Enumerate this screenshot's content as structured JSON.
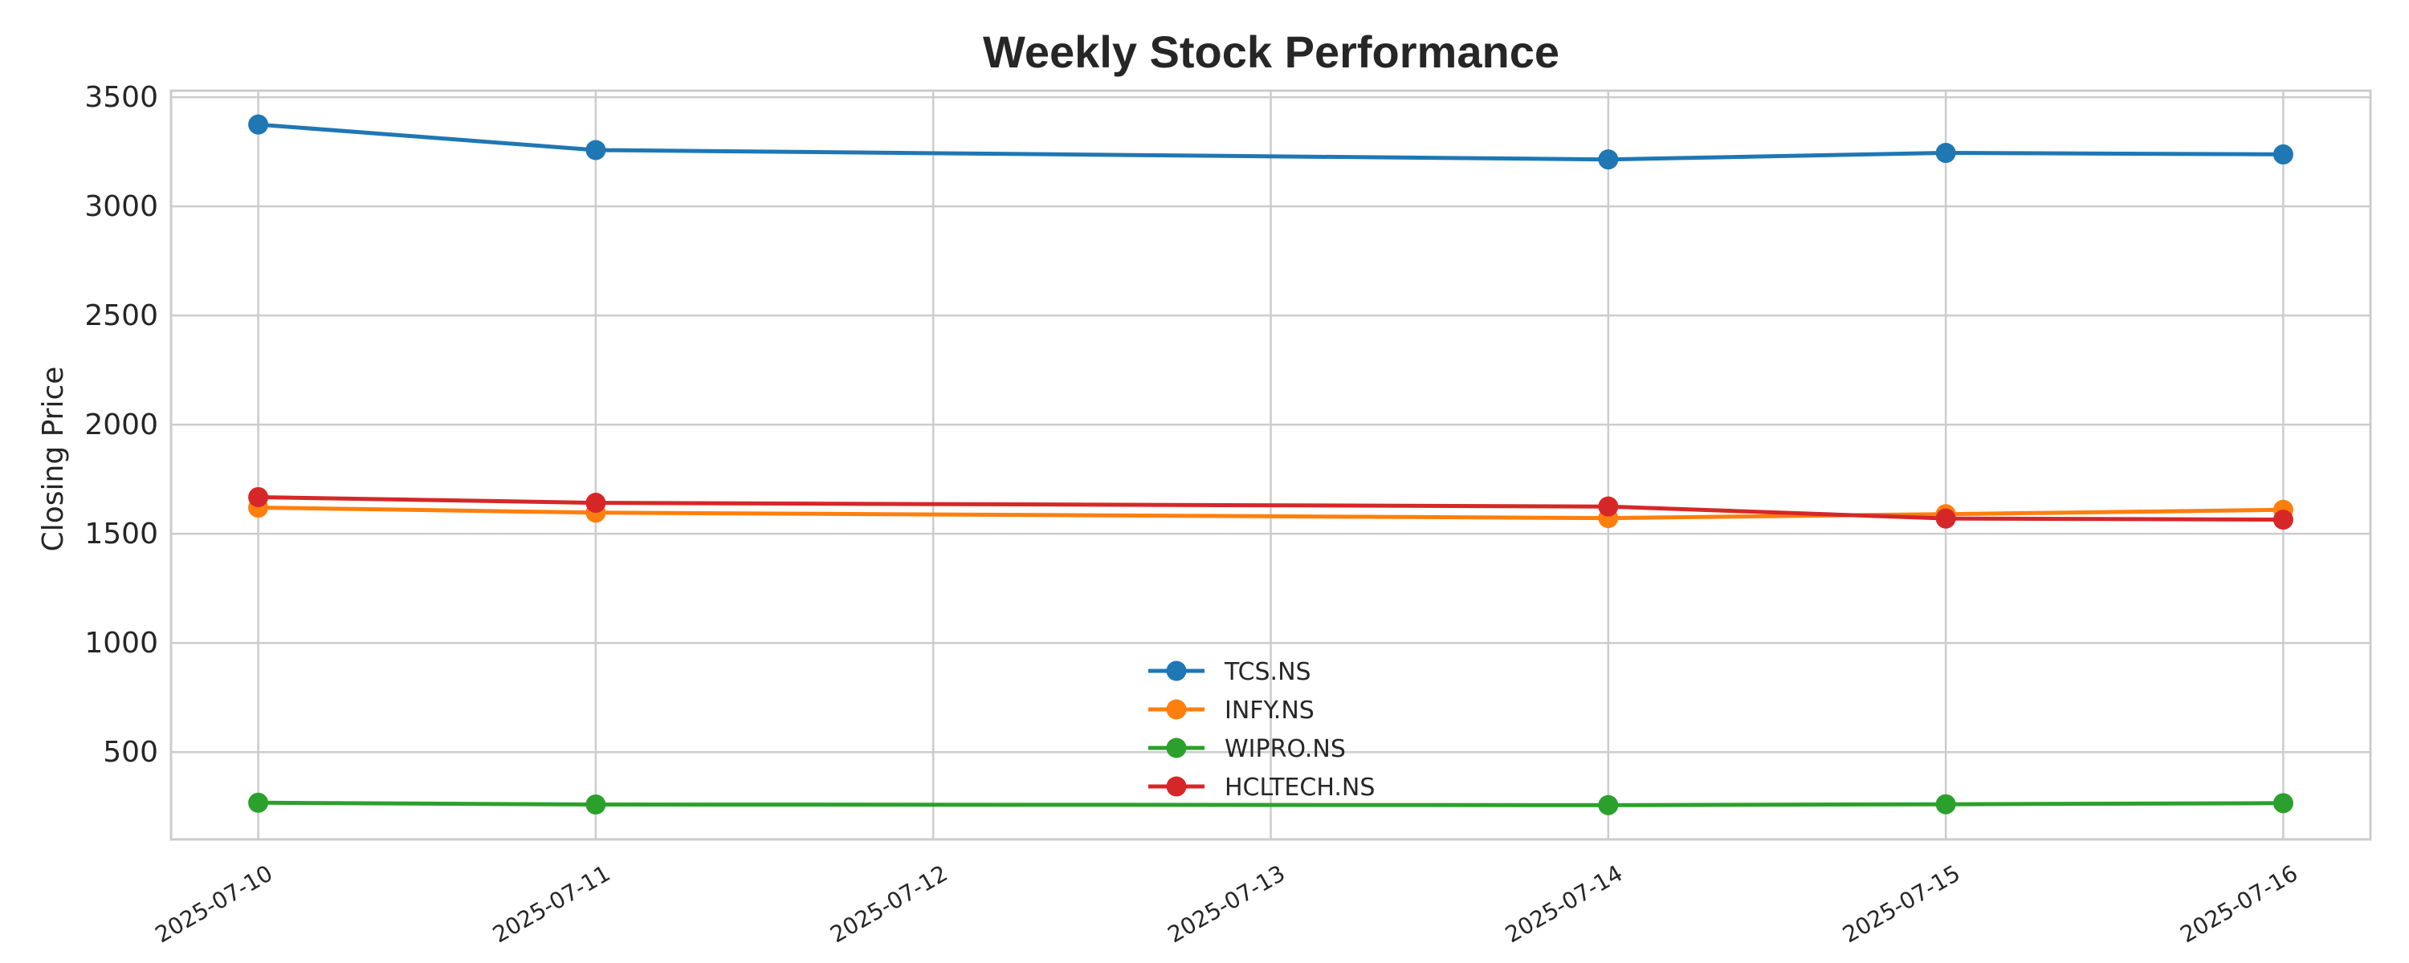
{
  "chart_data": {
    "type": "line",
    "title": "Weekly Stock Performance",
    "xlabel": "",
    "ylabel": "Closing Price",
    "x": [
      "2025-07-10",
      "2025-07-11",
      "2025-07-14",
      "2025-07-15",
      "2025-07-16"
    ],
    "x_ticks": [
      "2025-07-10",
      "2025-07-11",
      "2025-07-12",
      "2025-07-13",
      "2025-07-14",
      "2025-07-15",
      "2025-07-16"
    ],
    "xlim": [
      "2025-07-09 17:48",
      "2025-07-16 06:12"
    ],
    "y_ticks": [
      500,
      1000,
      1500,
      2000,
      2500,
      3000,
      3500
    ],
    "ylim": [
      100,
      3530
    ],
    "grid": true,
    "legend_position": "lower center",
    "series": [
      {
        "name": "TCS.NS",
        "color": "#1f77b4",
        "values": [
          3375,
          3258,
          3215,
          3245,
          3238
        ]
      },
      {
        "name": "INFY.NS",
        "color": "#ff7f0e",
        "values": [
          1620,
          1597,
          1572,
          1590,
          1610
        ]
      },
      {
        "name": "WIPRO.NS",
        "color": "#2ca02c",
        "values": [
          268,
          260,
          257,
          261,
          266
        ]
      },
      {
        "name": "HCLTECH.NS",
        "color": "#d62728",
        "values": [
          1668,
          1642,
          1625,
          1570,
          1565
        ]
      }
    ]
  }
}
